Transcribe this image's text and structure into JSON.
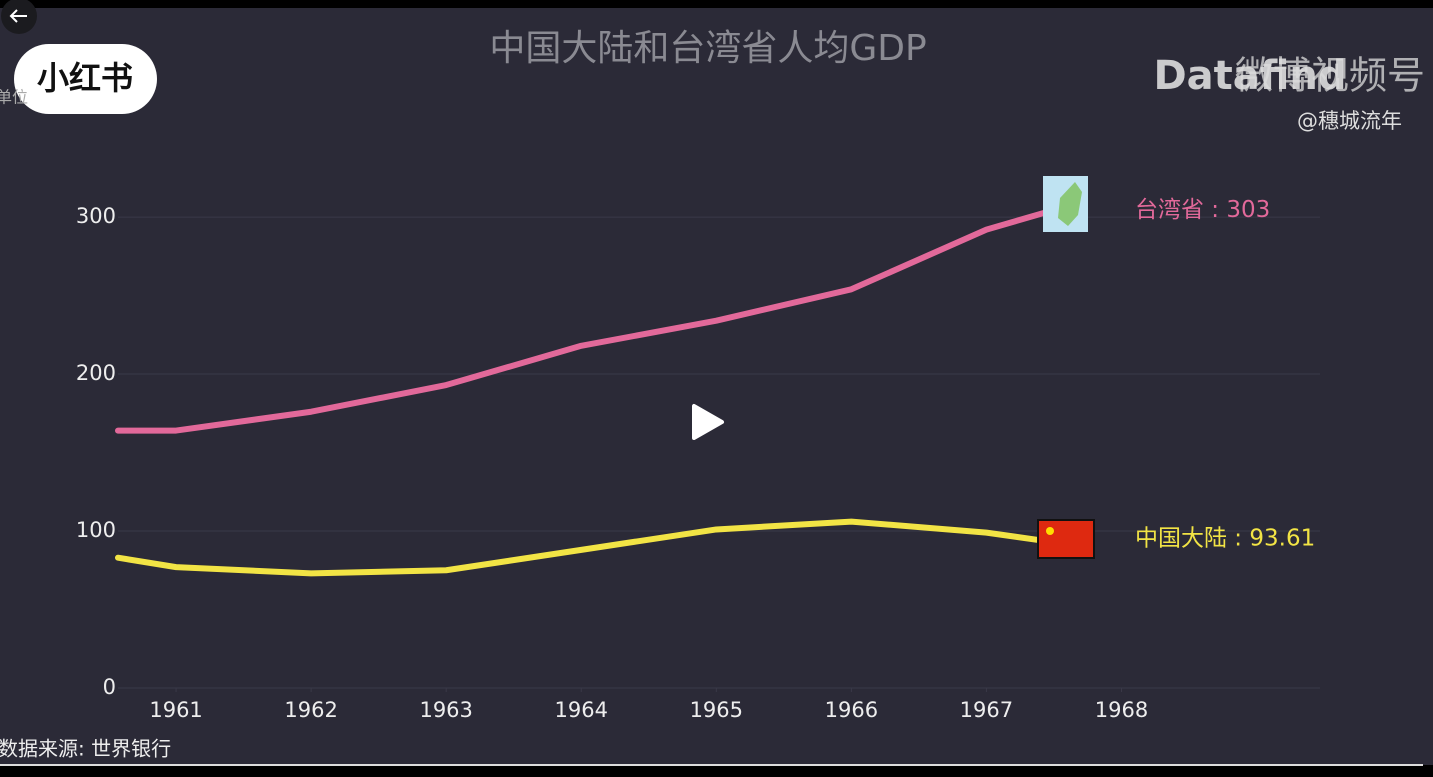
{
  "player": {
    "logo": "小红书",
    "watermark": "Datafind",
    "channel": "微博视频号",
    "author": "@穗城流年"
  },
  "chart_data": {
    "type": "line",
    "title": "中国大陆和台湾省人均GDP",
    "unit_label": "单位",
    "source": "数据来源: 世界银行",
    "x": [
      1960.57,
      1961,
      1962,
      1963,
      1964,
      1965,
      1966,
      1967,
      1967.44
    ],
    "series": [
      {
        "name": "台湾省",
        "color": "#e2699a",
        "end_label": "台湾省 : 303",
        "values": [
          164,
          164,
          176,
          193,
          218,
          234,
          254,
          292,
          303
        ]
      },
      {
        "name": "中国大陆",
        "color": "#f2e445",
        "end_label": "中国大陆 : 93.61",
        "values": [
          83,
          77,
          73,
          75,
          88,
          101,
          106,
          99,
          93.61
        ]
      }
    ],
    "xlim": [
      1960.57,
      1969.47
    ],
    "xticks": [
      1961,
      1962,
      1963,
      1964,
      1965,
      1966,
      1967,
      1968
    ],
    "ylim": [
      0,
      330
    ],
    "yticks": [
      0,
      100,
      200,
      300
    ],
    "grid": true
  }
}
